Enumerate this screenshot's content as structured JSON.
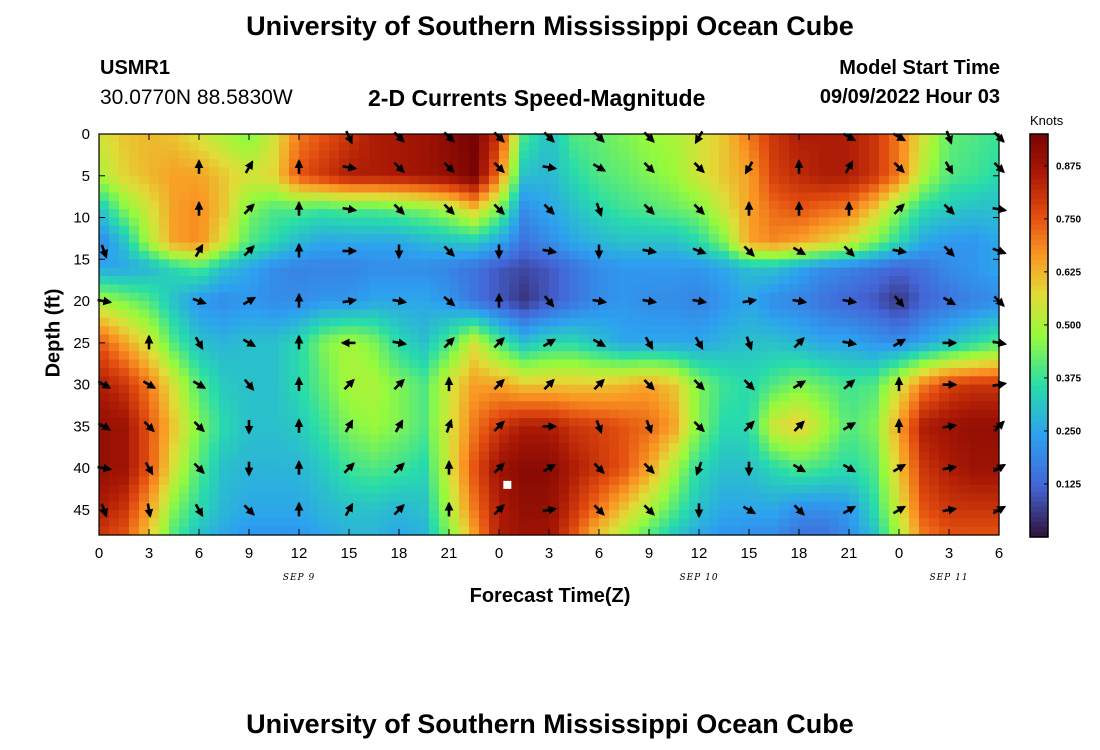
{
  "header": {
    "title": "University of Southern Mississippi Ocean Cube",
    "station": "USMR1",
    "coordinates": "30.0770N  88.5830W",
    "subtitle": "2-D Currents Speed-Magnitude",
    "model_start_label": "Model Start Time",
    "model_start_value": "09/09/2022 Hour 03"
  },
  "footer": {
    "title": "University of Southern Mississippi Ocean Cube"
  },
  "chart_data": {
    "type": "heatmap",
    "title": "2-D Currents Speed-Magnitude",
    "xlabel": "Forecast Time(Z)",
    "ylabel": "Depth (ft)",
    "x_tick_labels": [
      "0",
      "3",
      "6",
      "9",
      "12",
      "15",
      "18",
      "21",
      "0",
      "3",
      "6",
      "9",
      "12",
      "15",
      "18",
      "21",
      "0",
      "3",
      "6"
    ],
    "x_range_hours": [
      0,
      54
    ],
    "day_labels": [
      {
        "label": "SEP 9",
        "hour": 12
      },
      {
        "label": "SEP 10",
        "hour": 36
      },
      {
        "label": "SEP 11",
        "hour": 51
      }
    ],
    "y_ticks": [
      0,
      5,
      10,
      15,
      20,
      25,
      30,
      35,
      40,
      45
    ],
    "y_range_ft": [
      0,
      48
    ],
    "y_inverted": true,
    "colorbar": {
      "unit": "Knots",
      "ticks": [
        0.125,
        0.25,
        0.375,
        0.5,
        0.625,
        0.75,
        0.875
      ],
      "tick_labels": [
        "0.125",
        "0.250",
        "0.375",
        "0.500",
        "0.625",
        "0.750",
        "0.875"
      ],
      "range": [
        0,
        0.95
      ],
      "colormap": "turbo",
      "placement": "right"
    },
    "vector_grid": {
      "hours": [
        0,
        3,
        6,
        9,
        12,
        15,
        18,
        21,
        24,
        27,
        30,
        33,
        36,
        39,
        42,
        45,
        48,
        51,
        54
      ],
      "depths_ft": [
        0,
        4,
        9,
        14,
        20,
        25,
        30,
        35,
        40,
        45
      ]
    },
    "speed_depths_ft": [
      0,
      5,
      9,
      13,
      16,
      20,
      25,
      30,
      35,
      40,
      45,
      48
    ],
    "speed_knots": [
      [
        0.55,
        0.6,
        0.62,
        0.6,
        0.55,
        0.5,
        0.45,
        0.55,
        0.7,
        0.75,
        0.8,
        0.85,
        0.86,
        0.88,
        0.92,
        0.95,
        0.8,
        0.4,
        0.3,
        0.4,
        0.42,
        0.45,
        0.48,
        0.5,
        0.55,
        0.6,
        0.7,
        0.8,
        0.85,
        0.85,
        0.85,
        0.8,
        0.7,
        0.55,
        0.42,
        0.4,
        0.38
      ],
      [
        0.5,
        0.58,
        0.62,
        0.65,
        0.65,
        0.6,
        0.55,
        0.58,
        0.75,
        0.8,
        0.85,
        0.85,
        0.86,
        0.88,
        0.9,
        0.95,
        0.7,
        0.3,
        0.28,
        0.35,
        0.4,
        0.42,
        0.45,
        0.48,
        0.55,
        0.6,
        0.65,
        0.78,
        0.82,
        0.85,
        0.85,
        0.8,
        0.7,
        0.5,
        0.4,
        0.38,
        0.35
      ],
      [
        0.3,
        0.45,
        0.55,
        0.65,
        0.68,
        0.6,
        0.45,
        0.4,
        0.4,
        0.38,
        0.4,
        0.4,
        0.42,
        0.45,
        0.5,
        0.6,
        0.45,
        0.2,
        0.25,
        0.3,
        0.35,
        0.38,
        0.4,
        0.42,
        0.45,
        0.55,
        0.65,
        0.72,
        0.75,
        0.72,
        0.7,
        0.6,
        0.45,
        0.35,
        0.32,
        0.3,
        0.3
      ],
      [
        0.18,
        0.3,
        0.5,
        0.65,
        0.68,
        0.55,
        0.4,
        0.35,
        0.28,
        0.25,
        0.25,
        0.25,
        0.25,
        0.28,
        0.3,
        0.32,
        0.25,
        0.15,
        0.2,
        0.25,
        0.28,
        0.3,
        0.3,
        0.3,
        0.35,
        0.45,
        0.65,
        0.68,
        0.65,
        0.6,
        0.55,
        0.45,
        0.35,
        0.25,
        0.22,
        0.22,
        0.25
      ],
      [
        0.25,
        0.25,
        0.28,
        0.35,
        0.4,
        0.3,
        0.25,
        0.2,
        0.18,
        0.18,
        0.18,
        0.2,
        0.2,
        0.2,
        0.18,
        0.15,
        0.1,
        0.08,
        0.1,
        0.15,
        0.2,
        0.22,
        0.22,
        0.22,
        0.22,
        0.25,
        0.3,
        0.3,
        0.25,
        0.2,
        0.18,
        0.15,
        0.12,
        0.15,
        0.2,
        0.22,
        0.25
      ],
      [
        0.5,
        0.45,
        0.4,
        0.3,
        0.22,
        0.2,
        0.22,
        0.2,
        0.2,
        0.22,
        0.22,
        0.25,
        0.25,
        0.25,
        0.22,
        0.15,
        0.1,
        0.05,
        0.1,
        0.15,
        0.2,
        0.22,
        0.2,
        0.2,
        0.18,
        0.22,
        0.25,
        0.2,
        0.18,
        0.15,
        0.12,
        0.1,
        0.05,
        0.12,
        0.15,
        0.18,
        0.2
      ],
      [
        0.75,
        0.65,
        0.55,
        0.4,
        0.3,
        0.28,
        0.3,
        0.3,
        0.35,
        0.45,
        0.5,
        0.45,
        0.35,
        0.3,
        0.4,
        0.55,
        0.4,
        0.3,
        0.35,
        0.35,
        0.3,
        0.25,
        0.25,
        0.25,
        0.25,
        0.28,
        0.3,
        0.3,
        0.28,
        0.25,
        0.25,
        0.22,
        0.2,
        0.25,
        0.3,
        0.35,
        0.4
      ],
      [
        0.85,
        0.8,
        0.7,
        0.55,
        0.4,
        0.32,
        0.3,
        0.3,
        0.35,
        0.42,
        0.5,
        0.5,
        0.45,
        0.4,
        0.55,
        0.65,
        0.65,
        0.6,
        0.6,
        0.6,
        0.6,
        0.62,
        0.65,
        0.6,
        0.45,
        0.38,
        0.35,
        0.4,
        0.45,
        0.42,
        0.38,
        0.4,
        0.55,
        0.7,
        0.78,
        0.8,
        0.8
      ],
      [
        0.9,
        0.88,
        0.75,
        0.6,
        0.45,
        0.35,
        0.3,
        0.3,
        0.32,
        0.38,
        0.45,
        0.48,
        0.45,
        0.4,
        0.55,
        0.7,
        0.8,
        0.85,
        0.85,
        0.8,
        0.78,
        0.75,
        0.72,
        0.65,
        0.45,
        0.35,
        0.35,
        0.55,
        0.6,
        0.5,
        0.4,
        0.45,
        0.65,
        0.85,
        0.88,
        0.9,
        0.9
      ],
      [
        0.9,
        0.88,
        0.75,
        0.55,
        0.4,
        0.3,
        0.28,
        0.28,
        0.28,
        0.32,
        0.38,
        0.4,
        0.38,
        0.35,
        0.55,
        0.75,
        0.88,
        0.92,
        0.92,
        0.85,
        0.8,
        0.75,
        0.65,
        0.5,
        0.35,
        0.3,
        0.3,
        0.35,
        0.4,
        0.38,
        0.35,
        0.4,
        0.6,
        0.8,
        0.85,
        0.88,
        0.88
      ],
      [
        0.85,
        0.8,
        0.65,
        0.45,
        0.35,
        0.28,
        0.25,
        0.25,
        0.25,
        0.28,
        0.3,
        0.3,
        0.28,
        0.3,
        0.5,
        0.7,
        0.85,
        0.9,
        0.9,
        0.8,
        0.7,
        0.6,
        0.5,
        0.4,
        0.3,
        0.25,
        0.25,
        0.25,
        0.2,
        0.2,
        0.22,
        0.35,
        0.55,
        0.75,
        0.8,
        0.8,
        0.8
      ],
      [
        0.8,
        0.75,
        0.6,
        0.4,
        0.3,
        0.25,
        0.22,
        0.22,
        0.22,
        0.25,
        0.28,
        0.28,
        0.25,
        0.28,
        0.45,
        0.65,
        0.85,
        0.88,
        0.88,
        0.75,
        0.6,
        0.5,
        0.4,
        0.32,
        0.25,
        0.22,
        0.2,
        0.2,
        0.15,
        0.15,
        0.2,
        0.3,
        0.5,
        0.7,
        0.75,
        0.75,
        0.75
      ]
    ],
    "vector_directions_deg": [
      [
        null,
        null,
        null,
        null,
        null,
        155,
        135,
        135,
        135,
        135,
        135,
        135,
        210,
        null,
        null,
        120,
        120,
        160,
        135,
        135,
        null,
        null
      ],
      [
        null,
        null,
        0,
        30,
        0,
        100,
        135,
        135,
        135,
        100,
        120,
        135,
        135,
        210,
        0,
        30,
        135,
        150,
        135,
        135,
        200,
        120,
        0
      ],
      [
        null,
        null,
        0,
        45,
        0,
        100,
        135,
        135,
        135,
        135,
        160,
        135,
        135,
        0,
        0,
        0,
        45,
        135,
        100,
        100,
        100,
        135,
        0
      ],
      [
        160,
        null,
        30,
        45,
        0,
        90,
        180,
        135,
        180,
        100,
        180,
        100,
        110,
        135,
        120,
        135,
        100,
        135,
        110,
        120,
        100,
        100,
        0
      ],
      [
        100,
        null,
        110,
        60,
        0,
        80,
        100,
        130,
        0,
        140,
        100,
        100,
        100,
        80,
        100,
        100,
        140,
        120,
        135,
        110,
        100,
        100,
        100
      ],
      [
        null,
        0,
        150,
        120,
        0,
        270,
        100,
        45,
        45,
        60,
        120,
        150,
        150,
        160,
        45,
        100,
        60,
        90,
        100,
        100,
        130,
        135,
        100
      ],
      [
        120,
        120,
        120,
        140,
        0,
        45,
        45,
        0,
        45,
        45,
        45,
        135,
        135,
        135,
        60,
        50,
        0,
        90,
        80,
        135,
        150,
        135,
        100
      ],
      [
        120,
        135,
        135,
        180,
        0,
        30,
        30,
        20,
        45,
        90,
        160,
        160,
        135,
        45,
        45,
        60,
        0,
        80,
        45,
        60,
        45,
        135,
        135
      ],
      [
        100,
        150,
        135,
        180,
        0,
        45,
        45,
        0,
        45,
        60,
        135,
        135,
        200,
        180,
        120,
        120,
        60,
        80,
        60,
        45,
        45,
        180,
        135
      ],
      [
        160,
        170,
        150,
        135,
        0,
        30,
        45,
        0,
        45,
        80,
        135,
        135,
        180,
        120,
        135,
        60,
        60,
        80,
        60,
        60,
        45,
        180,
        135
      ]
    ],
    "marker": {
      "hour": 24.5,
      "depth_ft": 42,
      "color": "#ffffff"
    }
  }
}
